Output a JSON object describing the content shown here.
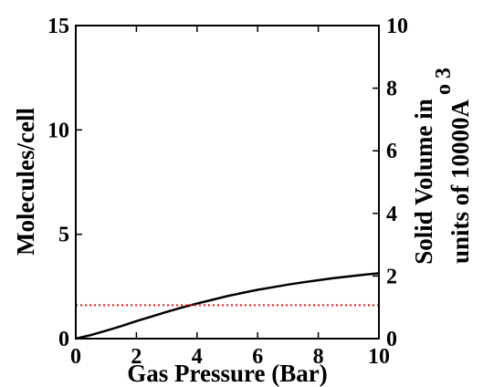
{
  "chart_data": {
    "type": "line",
    "xlabel": "Gas Pressure (Bar)",
    "ylabel": "Molecules/cell",
    "y2label_line1": "Solid Volume in",
    "y2label_line2": "units of 10000",
    "y2label_unit_base": "A",
    "y2label_unit_sup": "o 3",
    "xlim": [
      0,
      10
    ],
    "ylim": [
      0,
      15
    ],
    "y2lim": [
      0,
      10
    ],
    "xticks": [
      "0",
      "2",
      "4",
      "6",
      "8",
      "10"
    ],
    "yticks": [
      "0",
      "5",
      "10",
      "15"
    ],
    "y2ticks": [
      "0",
      "2",
      "4",
      "6",
      "8",
      "10"
    ],
    "grid": false,
    "series": [
      {
        "axis": "left",
        "style": "solid",
        "color": "#000000",
        "x": [
          0,
          0.5,
          1,
          1.5,
          2,
          2.5,
          3,
          3.5,
          4,
          4.5,
          5,
          5.5,
          6,
          6.5,
          7,
          7.5,
          8,
          8.5,
          9,
          9.5,
          10
        ],
        "y": [
          0,
          0.17,
          0.38,
          0.6,
          0.84,
          1.06,
          1.28,
          1.49,
          1.68,
          1.86,
          2.04,
          2.19,
          2.34,
          2.46,
          2.59,
          2.7,
          2.8,
          2.9,
          2.98,
          3.06,
          3.13
        ]
      },
      {
        "axis": "left",
        "style": "dotted",
        "color": "#e8191a",
        "x": [
          0,
          10
        ],
        "y": [
          1.6,
          1.6
        ]
      }
    ]
  }
}
